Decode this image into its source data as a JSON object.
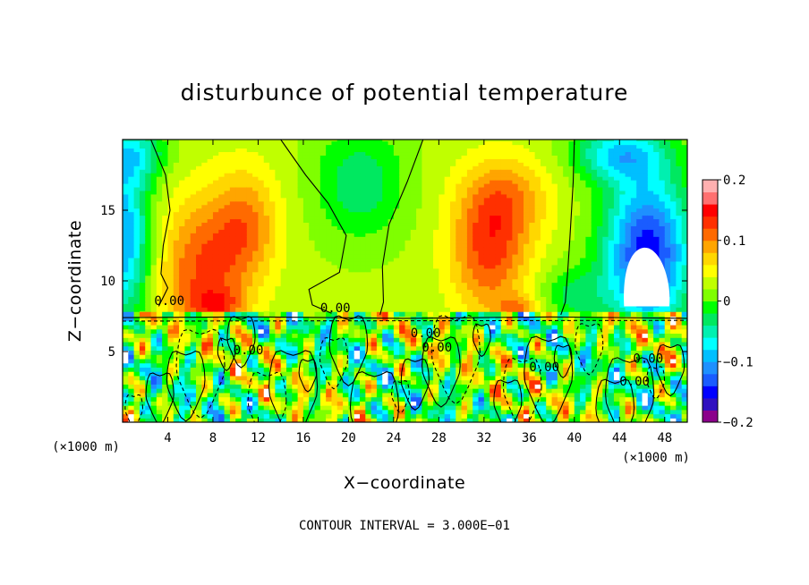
{
  "chart_data": {
    "type": "heatmap",
    "title": "disturbunce of potential temperature",
    "xlabel": "X−coordinate",
    "ylabel": "Z−coordinate",
    "x_unit_label": "(×1000 m)",
    "z_unit_label": "(×1000 m)",
    "xlim": [
      0,
      50
    ],
    "ylim": [
      0,
      20
    ],
    "x_ticks": [
      4,
      8,
      12,
      16,
      20,
      24,
      28,
      32,
      36,
      40,
      44,
      48
    ],
    "x_tick_labels": [
      "4",
      "8",
      "12",
      "16",
      "20",
      "24",
      "28",
      "32",
      "36",
      "40",
      "44",
      "48"
    ],
    "y_ticks": [
      5,
      10,
      15
    ],
    "y_tick_labels": [
      "5",
      "10",
      "15"
    ],
    "colorbar": {
      "range": [
        -0.2,
        0.2
      ],
      "ticks": [
        0.2,
        0.1,
        0,
        -0.1,
        -0.2
      ],
      "tick_labels": [
        "0.2",
        "0.1",
        "0",
        "−0.1",
        "−0.2"
      ],
      "colors": [
        "#8b008b",
        "#3010c0",
        "#0000ff",
        "#1a5cff",
        "#1e90ff",
        "#00bfff",
        "#00ffff",
        "#00f0b0",
        "#00e860",
        "#00ff00",
        "#7fff00",
        "#c0ff00",
        "#ffff00",
        "#ffd700",
        "#ffa500",
        "#ff6a00",
        "#ff3000",
        "#ff0000",
        "#ff7070",
        "#ffb0b0"
      ]
    },
    "contour_labels": [
      "0.00",
      "0.00",
      "0.00",
      "0.00",
      "0.00",
      "0.00",
      "0.00",
      "0.00"
    ],
    "contour_interval": "CONTOUR INTERVAL = 3.000E−01"
  }
}
